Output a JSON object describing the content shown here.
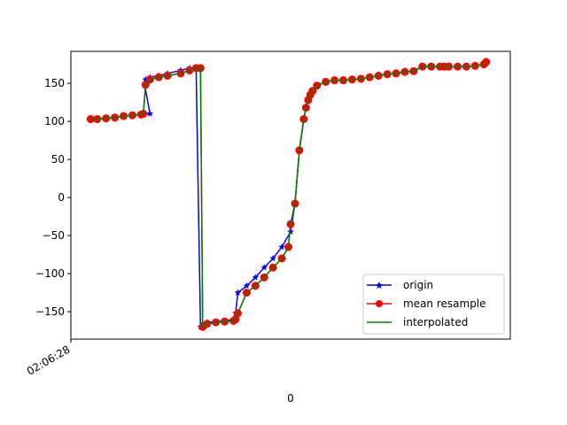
{
  "chart_data": {
    "type": "line",
    "title": "",
    "xlabel": "0",
    "ylabel": "",
    "x_tick_labels": [
      "02:06:28"
    ],
    "y_ticks": [
      150,
      100,
      50,
      0,
      -50,
      -100,
      -150
    ],
    "ylim": [
      -186,
      192
    ],
    "xlim": [
      0,
      100
    ],
    "legend_position": "lower-right",
    "legend": {
      "origin": "origin",
      "mean": "mean resample",
      "interp": "interpolated"
    },
    "colors": {
      "origin": "#0000ff",
      "mean": "#ff0000",
      "interp": "#008000"
    },
    "series": [
      {
        "key": "origin",
        "x": [
          4.5,
          6,
          8,
          10,
          12,
          14,
          16,
          18,
          16.8,
          17,
          18,
          20,
          22,
          25,
          27,
          28.5,
          29.5,
          30,
          31,
          33,
          35,
          37,
          37.5,
          38,
          40,
          42,
          44,
          46,
          48,
          50,
          51,
          52,
          53,
          53.5,
          54,
          54.5,
          55,
          56,
          58,
          60,
          62,
          64,
          66,
          68,
          70,
          72,
          74,
          76,
          78,
          80,
          82,
          84,
          85,
          86,
          88,
          90,
          92,
          94,
          94.5
        ],
        "values": [
          103,
          103,
          104,
          105,
          107,
          108,
          109,
          110,
          148,
          155,
          158,
          160,
          163,
          167,
          170,
          170,
          -170,
          -166,
          -164,
          -163,
          -162,
          -160,
          -152,
          -125,
          -116,
          -105,
          -92,
          -80,
          -65,
          -45,
          -8,
          62,
          103,
          118,
          128,
          135,
          140,
          147,
          152,
          154,
          154,
          155,
          156,
          158,
          160,
          162,
          163,
          165,
          166,
          172,
          172,
          172,
          172,
          172,
          172,
          172,
          173,
          175,
          178
        ]
      },
      {
        "key": "mean",
        "x": [
          4.5,
          6,
          8,
          10,
          12,
          14,
          16,
          16.5,
          17,
          18,
          20,
          22,
          25,
          27,
          28.5,
          29.5,
          30,
          31,
          33,
          35,
          37,
          37.5,
          38,
          40,
          42,
          44,
          46,
          48,
          49.5,
          50,
          51,
          52,
          53,
          53.5,
          54,
          54.5,
          55,
          56,
          58,
          60,
          62,
          64,
          66,
          68,
          70,
          72,
          74,
          76,
          78,
          80,
          82,
          84,
          85,
          86,
          88,
          90,
          92,
          94,
          94.5
        ],
        "values": [
          103,
          103,
          104,
          105,
          107,
          108,
          109,
          110,
          148,
          155,
          158,
          160,
          163,
          167,
          170,
          170,
          -170,
          -166,
          -164,
          -163,
          -162,
          -160,
          -152,
          -125,
          -116,
          -105,
          -92,
          -80,
          -65,
          -35,
          -8,
          62,
          103,
          118,
          128,
          135,
          140,
          147,
          152,
          154,
          154,
          155,
          156,
          158,
          160,
          162,
          163,
          165,
          166,
          172,
          172,
          172,
          172,
          172,
          172,
          172,
          173,
          175,
          178
        ]
      },
      {
        "key": "interp",
        "x": [
          4.5,
          6,
          8,
          10,
          12,
          14,
          16,
          16.5,
          17,
          18,
          20,
          22,
          25,
          27,
          28.5,
          29.5,
          30,
          31,
          33,
          35,
          37,
          37.5,
          38,
          40,
          42,
          44,
          46,
          48,
          49.5,
          50,
          51,
          52,
          53,
          53.5,
          54,
          54.5,
          55,
          56,
          58,
          60,
          62,
          64,
          66,
          68,
          70,
          72,
          74,
          76,
          78,
          80,
          82,
          84,
          85,
          86,
          88,
          90,
          92,
          94,
          94.5
        ],
        "values": [
          103,
          103,
          104,
          105,
          107,
          108,
          109,
          110,
          148,
          155,
          158,
          160,
          163,
          167,
          170,
          170,
          -170,
          -166,
          -164,
          -163,
          -162,
          -160,
          -152,
          -125,
          -116,
          -105,
          -92,
          -80,
          -65,
          -35,
          -8,
          62,
          103,
          118,
          128,
          135,
          140,
          147,
          152,
          154,
          154,
          155,
          156,
          158,
          160,
          162,
          163,
          165,
          166,
          172,
          172,
          172,
          172,
          172,
          172,
          172,
          173,
          175,
          178
        ]
      }
    ]
  }
}
